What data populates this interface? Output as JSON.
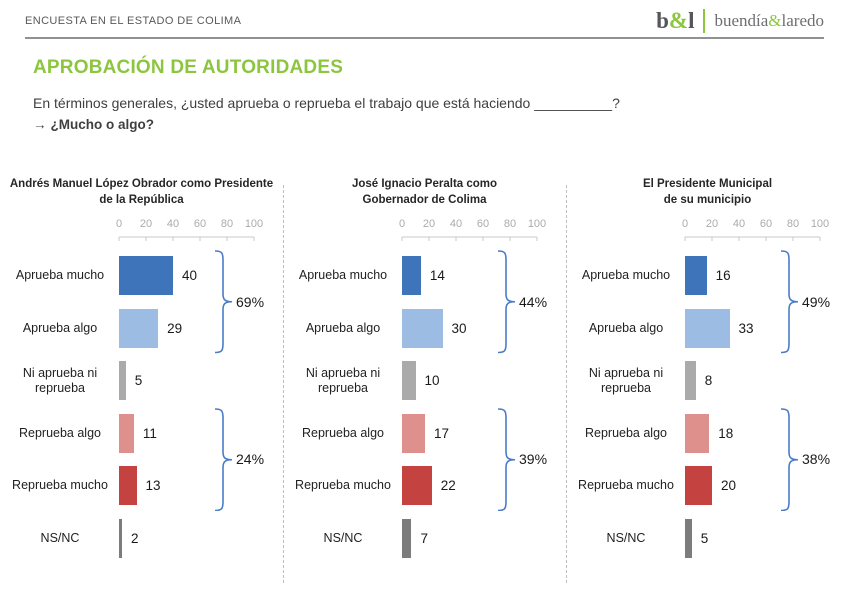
{
  "header": {
    "kicker": "ENCUESTA EN EL ESTADO DE COLIMA",
    "logo": {
      "b": "b",
      "amp1": "&",
      "l": "l",
      "name1": "buendía",
      "amp2": "&",
      "name2": "laredo"
    }
  },
  "page_title": "APROBACIÓN DE AUTORIDADES",
  "question": {
    "line1": "En términos generales, ¿usted aprueba o reprueba el trabajo que está haciendo __________?",
    "arrow": "→",
    "line2": "¿Mucho o algo?"
  },
  "colors": {
    "accent_green": "#8CC63F",
    "bracket_blue": "#4A7CC7",
    "axis_gray": "#ABABAB",
    "axis_line": "#C9C9C9",
    "bar_colors": [
      "#3D74BA",
      "#9CBCE4",
      "#AAAAAA",
      "#DD908C",
      "#C4423F",
      "#7C7C7C"
    ]
  },
  "chart_data": [
    {
      "type": "bar",
      "title": "Andrés Manuel López Obrador como Presidente de la República",
      "title_lines": [
        "Andrés Manuel López Obrador como Presidente",
        "de la República"
      ],
      "categories": [
        "Aprueba mucho",
        "Aprueba algo",
        "Ni aprueba ni reprueba",
        "Reprueba algo",
        "Reprueba mucho",
        "NS/NC"
      ],
      "values": [
        40,
        29,
        5,
        11,
        13,
        2
      ],
      "axis_ticks": [
        0,
        20,
        40,
        60,
        80,
        100
      ],
      "xlim": [
        0,
        100
      ],
      "groups": [
        {
          "label": "69%",
          "from": 0,
          "to": 1
        },
        {
          "label": "24%",
          "from": 3,
          "to": 4
        }
      ]
    },
    {
      "type": "bar",
      "title": "José Ignacio Peralta como Gobernador de Colima",
      "title_lines": [
        "José Ignacio Peralta como",
        "Gobernador de Colima"
      ],
      "categories": [
        "Aprueba mucho",
        "Aprueba algo",
        "Ni aprueba ni reprueba",
        "Reprueba algo",
        "Reprueba mucho",
        "NS/NC"
      ],
      "values": [
        14,
        30,
        10,
        17,
        22,
        7
      ],
      "axis_ticks": [
        0,
        20,
        40,
        60,
        80,
        100
      ],
      "xlim": [
        0,
        100
      ],
      "groups": [
        {
          "label": "44%",
          "from": 0,
          "to": 1
        },
        {
          "label": "39%",
          "from": 3,
          "to": 4
        }
      ]
    },
    {
      "type": "bar",
      "title": "El Presidente Municipal de su municipio",
      "title_lines": [
        "El Presidente Municipal",
        "de su municipio"
      ],
      "categories": [
        "Aprueba mucho",
        "Aprueba algo",
        "Ni aprueba ni reprueba",
        "Reprueba algo",
        "Reprueba mucho",
        "NS/NC"
      ],
      "values": [
        16,
        33,
        8,
        18,
        20,
        5
      ],
      "axis_ticks": [
        0,
        20,
        40,
        60,
        80,
        100
      ],
      "xlim": [
        0,
        100
      ],
      "groups": [
        {
          "label": "49%",
          "from": 0,
          "to": 1
        },
        {
          "label": "38%",
          "from": 3,
          "to": 4
        }
      ]
    }
  ]
}
